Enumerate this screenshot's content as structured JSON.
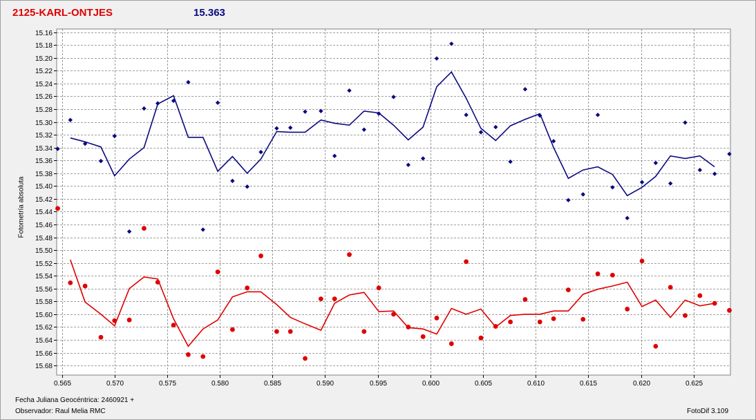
{
  "header": {
    "star_name": "2125-KARL-ONTJES",
    "magnitude": "15.363"
  },
  "footer": {
    "date_label": "Fecha Juliana Geocéntrica: 2460921 +",
    "observer_label": "Observador: Raul Melia RMC",
    "software": "FotoDif 3.109"
  },
  "colors": {
    "blue": "#0a0a80",
    "red": "#e00000",
    "grid": "#808080",
    "background": "#ffffff"
  },
  "chart_data": {
    "type": "scatter",
    "title": "2125-KARL-ONTJES",
    "xlabel": "",
    "ylabel": "Fotometría absoluta",
    "xlim": [
      0.5645,
      0.6285
    ],
    "ylim": [
      15.155,
      15.695
    ],
    "y_inverted": true,
    "grid": true,
    "x_ticks": [
      "0.565",
      "0.570",
      "0.575",
      "0.580",
      "0.585",
      "0.590",
      "0.595",
      "0.600",
      "0.605",
      "0.610",
      "0.615",
      "0.620",
      "0.625"
    ],
    "y_ticks": [
      "15.16",
      "15.18",
      "15.20",
      "15.22",
      "15.24",
      "15.26",
      "15.28",
      "15.30",
      "15.32",
      "15.34",
      "15.36",
      "15.38",
      "15.40",
      "15.42",
      "15.44",
      "15.46",
      "15.48",
      "15.50",
      "15.52",
      "15.54",
      "15.56",
      "15.58",
      "15.60",
      "15.62",
      "15.64",
      "15.66",
      "15.68"
    ],
    "series": [
      {
        "color": "#0a0a80",
        "marker": "diamond",
        "points": [
          [
            0.5646,
            15.342
          ],
          [
            0.5658,
            15.297
          ],
          [
            0.5672,
            15.334
          ],
          [
            0.5687,
            15.361
          ],
          [
            0.57,
            15.322
          ],
          [
            0.5714,
            15.471
          ],
          [
            0.5728,
            15.279
          ],
          [
            0.5741,
            15.271
          ],
          [
            0.5756,
            15.267
          ],
          [
            0.577,
            15.238
          ],
          [
            0.5784,
            15.468
          ],
          [
            0.5798,
            15.27
          ],
          [
            0.5812,
            15.392
          ],
          [
            0.5826,
            15.401
          ],
          [
            0.5839,
            15.347
          ],
          [
            0.5854,
            15.31
          ],
          [
            0.5867,
            15.309
          ],
          [
            0.5881,
            15.284
          ],
          [
            0.5896,
            15.283
          ],
          [
            0.5909,
            15.353
          ],
          [
            0.5923,
            15.251
          ],
          [
            0.5937,
            15.312
          ],
          [
            0.5951,
            15.287
          ],
          [
            0.5965,
            15.261
          ],
          [
            0.5979,
            15.367
          ],
          [
            0.5993,
            15.357
          ],
          [
            0.6006,
            15.201
          ],
          [
            0.602,
            15.178
          ],
          [
            0.6034,
            15.289
          ],
          [
            0.6048,
            15.316
          ],
          [
            0.6062,
            15.308
          ],
          [
            0.6076,
            15.362
          ],
          [
            0.609,
            15.249
          ],
          [
            0.6104,
            15.29
          ],
          [
            0.6117,
            15.33
          ],
          [
            0.6131,
            15.422
          ],
          [
            0.6145,
            15.413
          ],
          [
            0.6159,
            15.289
          ],
          [
            0.6173,
            15.402
          ],
          [
            0.6187,
            15.45
          ],
          [
            0.6201,
            15.394
          ],
          [
            0.6214,
            15.364
          ],
          [
            0.6228,
            15.396
          ],
          [
            0.6242,
            15.301
          ],
          [
            0.6256,
            15.375
          ],
          [
            0.627,
            15.381
          ],
          [
            0.6284,
            15.35
          ]
        ],
        "line": [
          [
            0.5658,
            15.325
          ],
          [
            0.5672,
            15.331
          ],
          [
            0.5687,
            15.339
          ],
          [
            0.57,
            15.384
          ],
          [
            0.5714,
            15.358
          ],
          [
            0.5728,
            15.34
          ],
          [
            0.5741,
            15.272
          ],
          [
            0.5756,
            15.259
          ],
          [
            0.577,
            15.324
          ],
          [
            0.5784,
            15.324
          ],
          [
            0.5798,
            15.377
          ],
          [
            0.5812,
            15.354
          ],
          [
            0.5826,
            15.38
          ],
          [
            0.5839,
            15.358
          ],
          [
            0.5854,
            15.315
          ],
          [
            0.5867,
            15.316
          ],
          [
            0.5881,
            15.316
          ],
          [
            0.5896,
            15.297
          ],
          [
            0.5909,
            15.302
          ],
          [
            0.5923,
            15.305
          ],
          [
            0.5937,
            15.283
          ],
          [
            0.5951,
            15.286
          ],
          [
            0.5965,
            15.305
          ],
          [
            0.5979,
            15.328
          ],
          [
            0.5993,
            15.308
          ],
          [
            0.6006,
            15.245
          ],
          [
            0.602,
            15.222
          ],
          [
            0.6034,
            15.263
          ],
          [
            0.6048,
            15.31
          ],
          [
            0.6062,
            15.329
          ],
          [
            0.6076,
            15.306
          ],
          [
            0.609,
            15.296
          ],
          [
            0.6104,
            15.287
          ],
          [
            0.6117,
            15.34
          ],
          [
            0.6131,
            15.388
          ],
          [
            0.6145,
            15.375
          ],
          [
            0.6159,
            15.37
          ],
          [
            0.6173,
            15.382
          ],
          [
            0.6187,
            15.415
          ],
          [
            0.6201,
            15.402
          ],
          [
            0.6214,
            15.385
          ],
          [
            0.6228,
            15.353
          ],
          [
            0.6242,
            15.357
          ],
          [
            0.6256,
            15.353
          ],
          [
            0.627,
            15.37
          ]
        ]
      },
      {
        "color": "#e00000",
        "marker": "circle",
        "points": [
          [
            0.5646,
            15.435
          ],
          [
            0.5658,
            15.551
          ],
          [
            0.5672,
            15.556
          ],
          [
            0.5687,
            15.636
          ],
          [
            0.57,
            15.61
          ],
          [
            0.5714,
            15.609
          ],
          [
            0.5728,
            15.466
          ],
          [
            0.5741,
            15.55
          ],
          [
            0.5756,
            15.617
          ],
          [
            0.577,
            15.663
          ],
          [
            0.5784,
            15.666
          ],
          [
            0.5798,
            15.534
          ],
          [
            0.5812,
            15.624
          ],
          [
            0.5826,
            15.559
          ],
          [
            0.5839,
            15.509
          ],
          [
            0.5854,
            15.627
          ],
          [
            0.5867,
            15.627
          ],
          [
            0.5881,
            15.669
          ],
          [
            0.5896,
            15.576
          ],
          [
            0.5909,
            15.576
          ],
          [
            0.5923,
            15.507
          ],
          [
            0.5937,
            15.627
          ],
          [
            0.5951,
            15.559
          ],
          [
            0.5965,
            15.6
          ],
          [
            0.5979,
            15.62
          ],
          [
            0.5993,
            15.635
          ],
          [
            0.6006,
            15.606
          ],
          [
            0.602,
            15.646
          ],
          [
            0.6034,
            15.518
          ],
          [
            0.6048,
            15.637
          ],
          [
            0.6062,
            15.619
          ],
          [
            0.6076,
            15.612
          ],
          [
            0.609,
            15.577
          ],
          [
            0.6104,
            15.612
          ],
          [
            0.6117,
            15.607
          ],
          [
            0.6131,
            15.562
          ],
          [
            0.6145,
            15.608
          ],
          [
            0.6159,
            15.537
          ],
          [
            0.6173,
            15.539
          ],
          [
            0.6187,
            15.592
          ],
          [
            0.6201,
            15.517
          ],
          [
            0.6214,
            15.65
          ],
          [
            0.6228,
            15.558
          ],
          [
            0.6242,
            15.602
          ],
          [
            0.6256,
            15.571
          ],
          [
            0.627,
            15.583
          ],
          [
            0.6284,
            15.594
          ]
        ],
        "line": [
          [
            0.5658,
            15.515
          ],
          [
            0.5672,
            15.581
          ],
          [
            0.5687,
            15.6
          ],
          [
            0.57,
            15.618
          ],
          [
            0.5714,
            15.56
          ],
          [
            0.5728,
            15.542
          ],
          [
            0.5741,
            15.545
          ],
          [
            0.5756,
            15.607
          ],
          [
            0.577,
            15.65
          ],
          [
            0.5784,
            15.623
          ],
          [
            0.5798,
            15.609
          ],
          [
            0.5812,
            15.573
          ],
          [
            0.5826,
            15.565
          ],
          [
            0.5839,
            15.565
          ],
          [
            0.5854,
            15.585
          ],
          [
            0.5867,
            15.605
          ],
          [
            0.5881,
            15.615
          ],
          [
            0.5896,
            15.625
          ],
          [
            0.5909,
            15.583
          ],
          [
            0.5923,
            15.57
          ],
          [
            0.5937,
            15.566
          ],
          [
            0.5951,
            15.596
          ],
          [
            0.5965,
            15.595
          ],
          [
            0.5979,
            15.621
          ],
          [
            0.5993,
            15.623
          ],
          [
            0.6006,
            15.631
          ],
          [
            0.602,
            15.591
          ],
          [
            0.6034,
            15.6
          ],
          [
            0.6048,
            15.592
          ],
          [
            0.6062,
            15.62
          ],
          [
            0.6076,
            15.602
          ],
          [
            0.609,
            15.6
          ],
          [
            0.6104,
            15.6
          ],
          [
            0.6117,
            15.595
          ],
          [
            0.6131,
            15.595
          ],
          [
            0.6145,
            15.569
          ],
          [
            0.6159,
            15.561
          ],
          [
            0.6173,
            15.556
          ],
          [
            0.6187,
            15.55
          ],
          [
            0.6201,
            15.588
          ],
          [
            0.6214,
            15.578
          ],
          [
            0.6228,
            15.605
          ],
          [
            0.6242,
            15.578
          ],
          [
            0.6256,
            15.587
          ],
          [
            0.627,
            15.583
          ]
        ]
      }
    ]
  }
}
